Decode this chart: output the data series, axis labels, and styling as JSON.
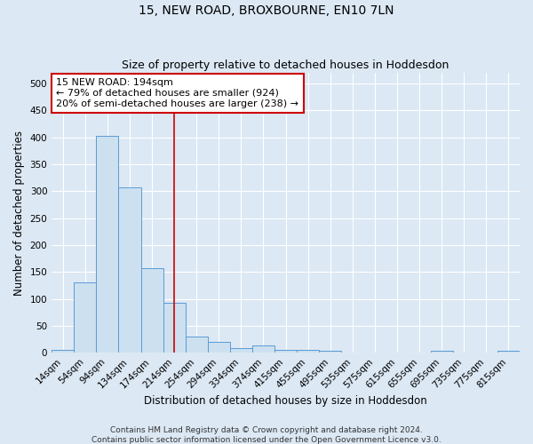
{
  "title": "15, NEW ROAD, BROXBOURNE, EN10 7LN",
  "subtitle": "Size of property relative to detached houses in Hoddesdon",
  "xlabel": "Distribution of detached houses by size in Hoddesdon",
  "ylabel": "Number of detached properties",
  "bar_labels": [
    "14sqm",
    "54sqm",
    "94sqm",
    "134sqm",
    "174sqm",
    "214sqm",
    "254sqm",
    "294sqm",
    "334sqm",
    "374sqm",
    "415sqm",
    "455sqm",
    "495sqm",
    "535sqm",
    "575sqm",
    "615sqm",
    "655sqm",
    "695sqm",
    "735sqm",
    "775sqm",
    "815sqm"
  ],
  "bar_values": [
    6,
    130,
    403,
    308,
    157,
    93,
    30,
    20,
    8,
    13,
    5,
    6,
    3,
    0,
    0,
    0,
    0,
    3,
    0,
    0,
    3
  ],
  "bar_color": "#cce0f0",
  "bar_edge_color": "#5b9bd5",
  "ylim": [
    0,
    520
  ],
  "yticks": [
    0,
    50,
    100,
    150,
    200,
    250,
    300,
    350,
    400,
    450,
    500
  ],
  "vline_x_index": 5.0,
  "vline_color": "#cc0000",
  "annotation_text": "15 NEW ROAD: 194sqm\n← 79% of detached houses are smaller (924)\n20% of semi-detached houses are larger (238) →",
  "annotation_box_color": "#ffffff",
  "annotation_box_edge": "#cc0000",
  "footer_line1": "Contains HM Land Registry data © Crown copyright and database right 2024.",
  "footer_line2": "Contains public sector information licensed under the Open Government Licence v3.0.",
  "background_color": "#dce8f4",
  "title_fontsize": 10,
  "subtitle_fontsize": 9,
  "axis_label_fontsize": 8.5,
  "tick_fontsize": 7.5,
  "annotation_fontsize": 8,
  "footer_fontsize": 6.5
}
